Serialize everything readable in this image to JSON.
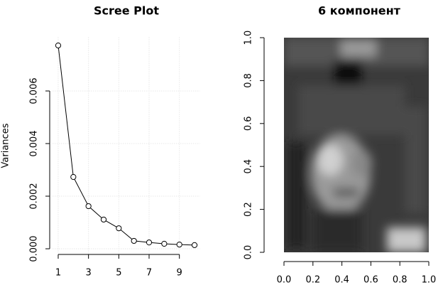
{
  "chart_data": [
    {
      "type": "line",
      "title": "Scree Plot",
      "y_label": "Variances",
      "x": [
        1,
        2,
        3,
        4,
        5,
        6,
        7,
        8,
        9,
        10
      ],
      "values": [
        0.00773,
        0.00273,
        0.00162,
        0.00111,
        0.00078,
        0.0003,
        0.00024,
        0.00019,
        0.00016,
        0.00014
      ],
      "color": "#000000",
      "grid": true,
      "xlim": [
        0.64,
        10.36
      ],
      "xticks": [
        1,
        3,
        5,
        7,
        9
      ],
      "ylim": [
        -0.00031,
        0.00804
      ],
      "yticks": [
        {
          "value": 0,
          "label": "0.000"
        },
        {
          "value": 0.002,
          "label": "0.002"
        },
        {
          "value": 0.004,
          "label": "0.004"
        },
        {
          "value": 0.006,
          "label": "0.006"
        }
      ]
    },
    {
      "type": "image",
      "title": "6 компонент",
      "xlim": [
        0,
        1
      ],
      "ylim": [
        0,
        1
      ],
      "xticks": [
        {
          "value": 0,
          "label": "0.0"
        },
        {
          "value": 0.2,
          "label": "0.2"
        },
        {
          "value": 0.4,
          "label": "0.4"
        },
        {
          "value": 0.6,
          "label": "0.6"
        },
        {
          "value": 0.8,
          "label": "0.8"
        },
        {
          "value": 1,
          "label": "1.0"
        }
      ],
      "yticks": [
        {
          "value": 0,
          "label": "0.0"
        },
        {
          "value": 0.2,
          "label": "0.2"
        },
        {
          "value": 0.4,
          "label": "0.4"
        },
        {
          "value": 0.6,
          "label": "0.6"
        },
        {
          "value": 0.8,
          "label": "0.8"
        },
        {
          "value": 1,
          "label": "1.0"
        }
      ]
    }
  ]
}
